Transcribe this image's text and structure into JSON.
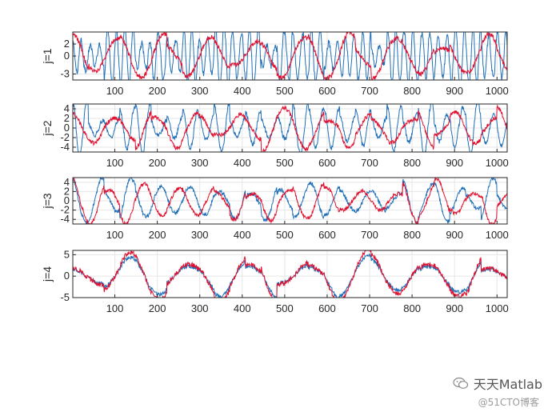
{
  "chart_data": [
    {
      "type": "line",
      "ylabel": "j=1",
      "xlim": [
        1,
        1024
      ],
      "ylim": [
        -4,
        4
      ],
      "xticks": [
        100,
        200,
        300,
        400,
        500,
        600,
        700,
        800,
        900,
        1000
      ],
      "yticks": [
        -3,
        0,
        2
      ],
      "grid": true,
      "series": [
        {
          "color": "#1f6fb8",
          "freq": 0.3,
          "amp": 2.8,
          "spike": 1.35,
          "seed": 11
        },
        {
          "color": "#e0102f",
          "freq": 0.055,
          "amp": 2.2,
          "spike": 1.3,
          "seed": 29
        }
      ]
    },
    {
      "type": "line",
      "ylabel": "j=2",
      "xlim": [
        1,
        1024
      ],
      "ylim": [
        -5,
        5
      ],
      "xticks": [
        100,
        200,
        300,
        400,
        500,
        600,
        700,
        800,
        900,
        1000
      ],
      "yticks": [
        -4,
        -2,
        0,
        2,
        4
      ],
      "grid": true,
      "series": [
        {
          "color": "#1f6fb8",
          "freq": 0.16,
          "amp": 2.6,
          "spike": 1.6,
          "seed": 41
        },
        {
          "color": "#e0102f",
          "freq": 0.06,
          "amp": 2.4,
          "spike": 1.6,
          "seed": 57
        }
      ]
    },
    {
      "type": "line",
      "ylabel": "j=3",
      "xlim": [
        1,
        1024
      ],
      "ylim": [
        -5,
        5
      ],
      "xticks": [
        100,
        200,
        300,
        400,
        500,
        600,
        700,
        800,
        900,
        1000
      ],
      "yticks": [
        -4,
        -2,
        0,
        2,
        4
      ],
      "grid": true,
      "series": [
        {
          "color": "#1f6fb8",
          "freq": 0.085,
          "amp": 2.5,
          "spike": 1.5,
          "seed": 73
        },
        {
          "color": "#e0102f",
          "freq": 0.07,
          "amp": 2.3,
          "spike": 1.8,
          "seed": 73
        }
      ]
    },
    {
      "type": "line",
      "ylabel": "j=4",
      "xlim": [
        1,
        1024
      ],
      "ylim": [
        -5,
        6
      ],
      "xticks": [
        100,
        200,
        300,
        400,
        500,
        600,
        700,
        800,
        900,
        1000
      ],
      "yticks": [
        -5,
        0,
        5
      ],
      "grid": true,
      "series": [
        {
          "color": "#1f6fb8",
          "freq": 0.042,
          "amp": 2.6,
          "spike": 1.4,
          "seed": 97
        },
        {
          "color": "#e0102f",
          "freq": 0.042,
          "amp": 3.0,
          "spike": 1.6,
          "seed": 97
        }
      ]
    }
  ],
  "watermark": {
    "text": "天天Matlab",
    "sub": "@51CTO博客",
    "icon": "wechat-icon"
  }
}
